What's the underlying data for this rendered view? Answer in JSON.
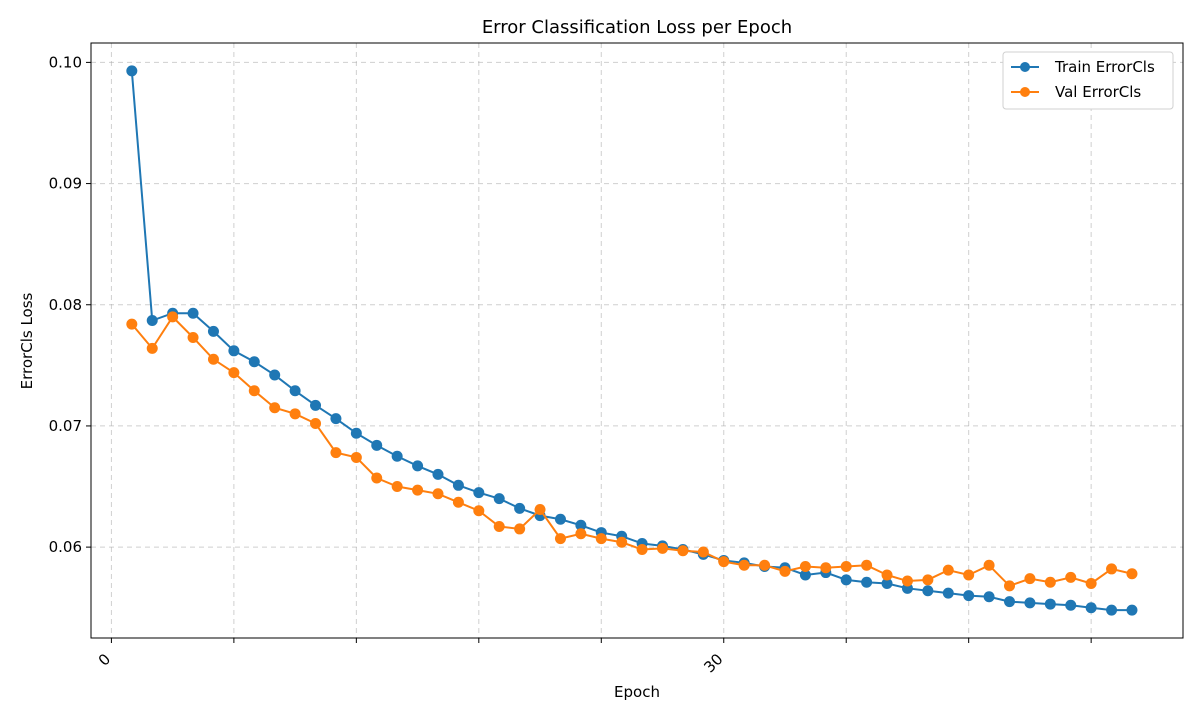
{
  "chart_data": {
    "type": "line",
    "title": "Error Classification Loss per Epoch",
    "xlabel": "Epoch",
    "ylabel": "ErrorCls Loss",
    "xlim": [
      -1,
      52.5
    ],
    "ylim": [
      0.0525,
      0.1016
    ],
    "x_ticks": [
      0,
      6,
      12,
      18,
      24,
      30,
      36,
      42,
      48
    ],
    "x_tick_labels": [
      "0",
      "",
      "",
      "",
      "",
      "30",
      "",
      "",
      ""
    ],
    "y_ticks": [
      0.06,
      0.07,
      0.08,
      0.09,
      0.1
    ],
    "y_tick_labels": [
      "0.06",
      "0.07",
      "0.08",
      "0.09",
      "0.10"
    ],
    "grid": true,
    "legend_position": "top-right",
    "x": [
      1,
      2,
      3,
      4,
      5,
      6,
      7,
      8,
      9,
      10,
      11,
      12,
      13,
      14,
      15,
      16,
      17,
      18,
      19,
      20,
      21,
      22,
      23,
      24,
      25,
      26,
      27,
      28,
      29,
      30,
      31,
      32,
      33,
      34,
      35,
      36,
      37,
      38,
      39,
      40,
      41,
      42,
      43,
      44,
      45,
      46,
      47,
      48,
      49,
      50
    ],
    "series": [
      {
        "name": "Train ErrorCls",
        "color": "#1f77b4",
        "values": [
          0.0993,
          0.0787,
          0.0793,
          0.0793,
          0.0778,
          0.0762,
          0.0753,
          0.0742,
          0.0729,
          0.0717,
          0.0706,
          0.0694,
          0.0684,
          0.0675,
          0.0667,
          0.066,
          0.0651,
          0.0645,
          0.064,
          0.0632,
          0.0626,
          0.0623,
          0.0618,
          0.0612,
          0.0609,
          0.0603,
          0.0601,
          0.0598,
          0.0594,
          0.0589,
          0.0587,
          0.0584,
          0.0583,
          0.0577,
          0.0579,
          0.0573,
          0.0571,
          0.057,
          0.0566,
          0.0564,
          0.0562,
          0.056,
          0.0559,
          0.0555,
          0.0554,
          0.0553,
          0.0552,
          0.055,
          0.0548,
          0.0548
        ]
      },
      {
        "name": "Val ErrorCls",
        "color": "#ff7f0e",
        "values": [
          0.0784,
          0.0764,
          0.079,
          0.0773,
          0.0755,
          0.0744,
          0.0729,
          0.0715,
          0.071,
          0.0702,
          0.0678,
          0.0674,
          0.0657,
          0.065,
          0.0647,
          0.0644,
          0.0637,
          0.063,
          0.0617,
          0.0615,
          0.0631,
          0.0607,
          0.0611,
          0.0607,
          0.0604,
          0.0598,
          0.0599,
          0.0597,
          0.0596,
          0.0588,
          0.0585,
          0.0585,
          0.058,
          0.0584,
          0.0583,
          0.0584,
          0.0585,
          0.0577,
          0.0572,
          0.0573,
          0.0581,
          0.0577,
          0.0585,
          0.0568,
          0.0574,
          0.0571,
          0.0575,
          0.057,
          0.0582,
          0.0578
        ]
      }
    ]
  }
}
